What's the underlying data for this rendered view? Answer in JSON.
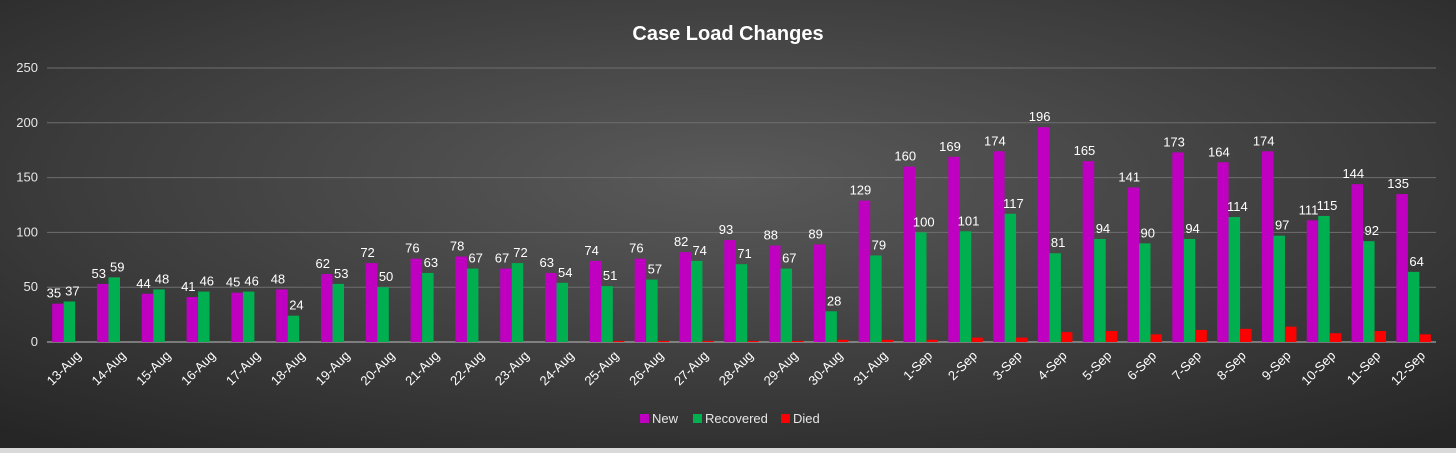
{
  "chart_data": {
    "type": "bar",
    "title": "Case Load Changes",
    "xlabel": "",
    "ylabel": "",
    "ylim": [
      0,
      250
    ],
    "yticks": [
      0,
      50,
      100,
      150,
      200,
      250
    ],
    "grid": true,
    "legend_position": "bottom",
    "categories": [
      "13-Aug",
      "14-Aug",
      "15-Aug",
      "16-Aug",
      "17-Aug",
      "18-Aug",
      "19-Aug",
      "20-Aug",
      "21-Aug",
      "22-Aug",
      "23-Aug",
      "24-Aug",
      "25-Aug",
      "26-Aug",
      "27-Aug",
      "28-Aug",
      "29-Aug",
      "30-Aug",
      "31-Aug",
      "1-Sep",
      "2-Sep",
      "3-Sep",
      "4-Sep",
      "5-Sep",
      "6-Sep",
      "7-Sep",
      "8-Sep",
      "9-Sep",
      "10-Sep",
      "11-Sep",
      "12-Sep"
    ],
    "series": [
      {
        "name": "New",
        "color": "#c000c0",
        "show_labels": true,
        "values": [
          35,
          53,
          44,
          41,
          45,
          48,
          62,
          72,
          76,
          78,
          67,
          63,
          74,
          76,
          82,
          93,
          88,
          89,
          129,
          160,
          169,
          174,
          196,
          165,
          141,
          173,
          164,
          174,
          111,
          144,
          135
        ]
      },
      {
        "name": "Recovered",
        "color": "#00b050",
        "show_labels": true,
        "values": [
          37,
          59,
          48,
          46,
          46,
          24,
          53,
          50,
          63,
          67,
          72,
          54,
          51,
          57,
          74,
          71,
          67,
          28,
          79,
          100,
          101,
          117,
          81,
          94,
          90,
          94,
          114,
          97,
          115,
          92,
          64
        ]
      },
      {
        "name": "Died",
        "color": "#ff0000",
        "show_labels": false,
        "values": [
          0,
          0,
          0,
          0,
          0,
          0,
          0,
          0,
          0,
          0,
          0,
          0,
          1,
          1,
          1,
          1,
          1,
          2,
          2,
          2,
          4,
          4,
          9,
          10,
          7,
          11,
          12,
          14,
          8,
          10,
          7
        ]
      }
    ]
  }
}
